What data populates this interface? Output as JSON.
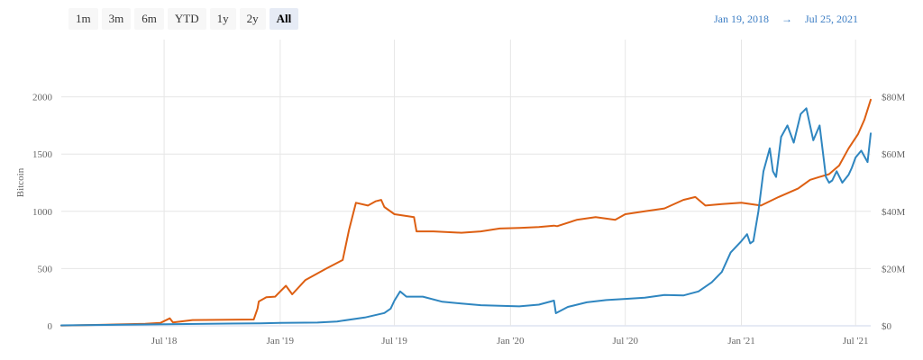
{
  "range_selector": {
    "buttons": [
      "1m",
      "3m",
      "6m",
      "YTD",
      "1y",
      "2y",
      "All"
    ],
    "active": "All"
  },
  "date_range": {
    "from": "Jan 19, 2018",
    "arrow": "→",
    "to": "Jul 25, 2021"
  },
  "chart_data": {
    "type": "line",
    "title": "",
    "xlabel": "",
    "ylabel": "Bitcoin",
    "ylim": [
      0,
      2500
    ],
    "y_ticks": [
      0,
      500,
      1000,
      1500,
      2000
    ],
    "y_tick_labels": [
      "0",
      "500",
      "1000",
      "1500",
      "2000"
    ],
    "y2lim": [
      0,
      100
    ],
    "y2_ticks": [
      0,
      20,
      40,
      60,
      80
    ],
    "y2_tick_labels": [
      "$0",
      "$20M",
      "$40M",
      "$60M",
      "$80M"
    ],
    "y2_unit": "$M",
    "xlim": [
      "2018-01-19",
      "2021-07-25"
    ],
    "x_ticks": [
      "2018-07-01",
      "2019-01-01",
      "2019-07-01",
      "2020-01-01",
      "2020-07-01",
      "2021-01-01",
      "2021-07-01"
    ],
    "x_tick_labels": [
      "Jul '18",
      "Jan '19",
      "Jul '19",
      "Jan '20",
      "Jul '20",
      "Jan '21",
      "Jul '21"
    ],
    "grid": true,
    "colors": {
      "bitcoin": "#2f86c0",
      "usd": "#dd5f12"
    },
    "series": [
      {
        "axis": "right",
        "x": [
          "2018-01-19",
          "2018-04-01",
          "2018-06-01",
          "2018-06-25",
          "2018-07-10",
          "2018-07-15",
          "2018-08-15",
          "2018-11-20",
          "2018-11-26",
          "2018-11-28",
          "2018-12-10",
          "2018-12-24",
          "2019-01-01",
          "2019-01-10",
          "2019-01-20",
          "2019-02-10",
          "2019-03-15",
          "2019-04-10",
          "2019-04-20",
          "2019-05-01",
          "2019-05-20",
          "2019-06-01",
          "2019-06-10",
          "2019-06-15",
          "2019-07-01",
          "2019-08-01",
          "2019-08-05",
          "2019-09-01",
          "2019-10-15",
          "2019-11-15",
          "2019-12-15",
          "2020-01-15",
          "2020-02-15",
          "2020-03-10",
          "2020-03-15",
          "2020-04-15",
          "2020-05-15",
          "2020-06-15",
          "2020-07-01",
          "2020-08-01",
          "2020-09-01",
          "2020-10-01",
          "2020-10-20",
          "2020-11-05",
          "2020-12-01",
          "2021-01-01",
          "2021-02-01",
          "2021-03-01",
          "2021-04-01",
          "2021-04-20",
          "2021-05-05",
          "2021-05-20",
          "2021-06-05",
          "2021-06-20",
          "2021-07-05",
          "2021-07-15",
          "2021-07-25"
        ],
        "values": [
          0.1,
          0.4,
          0.7,
          1.0,
          2.6,
          1.2,
          2.0,
          2.2,
          6.0,
          8.5,
          10.0,
          10.2,
          12.0,
          14.0,
          11.0,
          16.0,
          20.0,
          23.0,
          33.5,
          43.0,
          42.0,
          43.5,
          44.0,
          41.5,
          39.0,
          38.0,
          33.0,
          33.0,
          32.5,
          33.0,
          34.0,
          34.2,
          34.5,
          35.0,
          34.8,
          37.0,
          38.0,
          37.0,
          39.0,
          40.0,
          41.0,
          44.0,
          45.0,
          42.0,
          42.5,
          43.0,
          42.0,
          45.0,
          48.0,
          51.0,
          52.0,
          53.0,
          56.0,
          62.0,
          67.0,
          72.0,
          79.0
        ]
      },
      {
        "axis": "left",
        "x": [
          "2018-01-19",
          "2018-06-01",
          "2018-12-01",
          "2019-01-01",
          "2019-03-01",
          "2019-04-01",
          "2019-05-15",
          "2019-06-15",
          "2019-06-25",
          "2019-07-01",
          "2019-07-10",
          "2019-07-20",
          "2019-08-15",
          "2019-09-15",
          "2019-10-15",
          "2019-11-15",
          "2019-12-15",
          "2020-01-15",
          "2020-02-15",
          "2020-03-10",
          "2020-03-13",
          "2020-04-01",
          "2020-05-01",
          "2020-06-01",
          "2020-07-01",
          "2020-08-01",
          "2020-09-01",
          "2020-10-01",
          "2020-10-25",
          "2020-11-15",
          "2020-12-01",
          "2020-12-15",
          "2021-01-01",
          "2021-01-10",
          "2021-01-15",
          "2021-01-20",
          "2021-01-28",
          "2021-02-05",
          "2021-02-10",
          "2021-02-15",
          "2021-02-20",
          "2021-02-25",
          "2021-03-05",
          "2021-03-15",
          "2021-03-25",
          "2021-04-05",
          "2021-04-14",
          "2021-04-25",
          "2021-05-05",
          "2021-05-15",
          "2021-05-20",
          "2021-05-25",
          "2021-06-01",
          "2021-06-10",
          "2021-06-20",
          "2021-06-25",
          "2021-07-01",
          "2021-07-10",
          "2021-07-20",
          "2021-07-25"
        ],
        "values": [
          4,
          12,
          22,
          25,
          28,
          38,
          72,
          112,
          150,
          220,
          300,
          255,
          255,
          210,
          195,
          180,
          175,
          170,
          185,
          220,
          110,
          165,
          205,
          225,
          235,
          245,
          270,
          265,
          300,
          380,
          470,
          640,
          740,
          800,
          720,
          740,
          1000,
          1350,
          1450,
          1550,
          1350,
          1300,
          1650,
          1750,
          1600,
          1850,
          1900,
          1620,
          1750,
          1300,
          1250,
          1270,
          1350,
          1250,
          1320,
          1380,
          1470,
          1530,
          1430,
          1680
        ]
      }
    ]
  }
}
